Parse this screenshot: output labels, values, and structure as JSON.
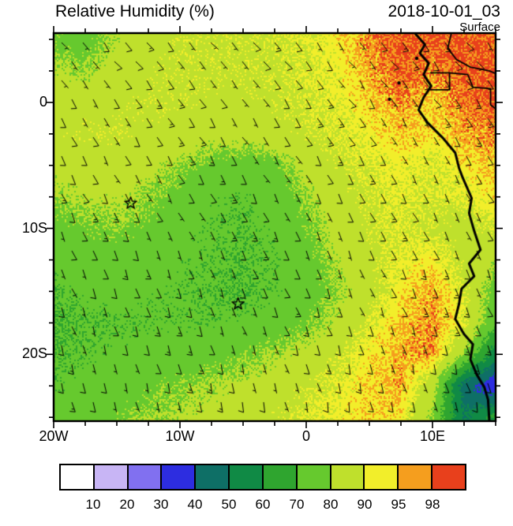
{
  "header": {
    "title": "Relative Humidity (%)",
    "datetime": "2018-10-01_03",
    "level": "Surface"
  },
  "axes": {
    "x_tick_labels": [
      {
        "label": "20W",
        "lon": -20
      },
      {
        "label": "10W",
        "lon": -10
      },
      {
        "label": "0",
        "lon": 0
      },
      {
        "label": "10E",
        "lon": 10
      }
    ],
    "y_tick_labels": [
      {
        "label": "0",
        "lat": 0
      },
      {
        "label": "10S",
        "lat": -10
      },
      {
        "label": "20S",
        "lat": -20
      }
    ],
    "minor_tick_interval_deg": 2.5,
    "major_tick_interval_deg": 10
  },
  "chart_data": {
    "type": "heatmap",
    "title": "Relative Humidity (%)",
    "valid_time": "2018-10-01_03",
    "level": "Surface",
    "units": "%",
    "lon_range": [
      -20,
      15
    ],
    "lat_range_top_bottom": [
      5.5,
      -25.3
    ],
    "colorbar": {
      "levels": [
        10,
        20,
        30,
        40,
        50,
        60,
        70,
        80,
        90,
        95,
        98
      ],
      "colors": [
        "#FFFFFF",
        "#C8B5F5",
        "#8170F0",
        "#2D2DE0",
        "#0E6F66",
        "#108A45",
        "#2FA52F",
        "#66C92E",
        "#BFE02C",
        "#F2EE2A",
        "#F59E1E",
        "#E8401C"
      ]
    },
    "grid": {
      "lons": [
        -20,
        -17.5,
        -15,
        -12.5,
        -10,
        -7.5,
        -5,
        -2.5,
        0,
        2.5,
        5,
        7.5,
        10,
        12.5,
        15
      ],
      "lats": [
        5,
        2.5,
        0,
        -2.5,
        -5,
        -7.5,
        -10,
        -12.5,
        -15,
        -17.5,
        -20,
        -22.5,
        -25
      ],
      "rh_percent": [
        [
          78,
          76,
          82,
          86,
          88,
          88,
          88,
          89,
          90,
          93,
          97,
          99,
          99,
          99,
          99
        ],
        [
          82,
          80,
          85,
          87,
          88,
          88,
          88,
          88,
          90,
          92,
          96,
          99,
          97,
          99,
          99
        ],
        [
          86,
          86,
          87,
          88,
          88,
          87,
          87,
          88,
          89,
          91,
          94,
          97,
          94,
          98,
          99
        ],
        [
          87,
          88,
          88,
          87,
          86,
          84,
          84,
          86,
          88,
          90,
          92,
          95,
          93,
          96,
          97
        ],
        [
          84,
          85,
          86,
          84,
          80,
          77,
          75,
          77,
          84,
          88,
          90,
          92,
          90,
          93,
          95
        ],
        [
          80,
          82,
          83,
          80,
          76,
          73,
          72,
          74,
          80,
          86,
          89,
          91,
          89,
          91,
          93
        ],
        [
          76,
          78,
          79,
          77,
          74,
          72,
          71,
          73,
          78,
          84,
          88,
          90,
          88,
          86,
          90
        ],
        [
          73,
          75,
          76,
          75,
          73,
          72,
          71,
          72,
          76,
          82,
          87,
          91,
          93,
          87,
          82
        ],
        [
          71,
          73,
          74,
          73,
          72,
          71,
          70,
          72,
          75,
          80,
          86,
          93,
          96,
          90,
          76
        ],
        [
          69,
          71,
          72,
          72,
          72,
          72,
          73,
          75,
          78,
          83,
          90,
          95,
          97,
          91,
          72
        ],
        [
          70,
          72,
          73,
          74,
          75,
          76,
          78,
          81,
          84,
          88,
          93,
          96,
          97,
          80,
          55
        ],
        [
          72,
          74,
          75,
          77,
          79,
          81,
          83,
          85,
          88,
          91,
          94,
          96,
          85,
          45,
          32
        ],
        [
          74,
          76,
          78,
          80,
          82,
          84,
          86,
          88,
          90,
          92,
          94,
          93,
          80,
          50,
          62
        ]
      ]
    },
    "wind_barbs": {
      "typical_speed_kt": 10,
      "typical_direction_from_deg": 145,
      "pattern": "southeasterly trade winds, 5-15 kt"
    },
    "markers": [
      {
        "type": "star",
        "lon": -13.9,
        "lat": -8.0
      },
      {
        "type": "star",
        "lon": -5.4,
        "lat": -16.0
      }
    ],
    "coastline": [
      [
        8.6,
        5.5
      ],
      [
        9.4,
        4.6
      ],
      [
        9.0,
        3.9
      ],
      [
        9.7,
        3.1
      ],
      [
        9.3,
        2.2
      ],
      [
        9.9,
        1.3
      ],
      [
        9.3,
        0.4
      ],
      [
        8.9,
        -0.6
      ],
      [
        9.6,
        -1.6
      ],
      [
        10.8,
        -2.8
      ],
      [
        11.8,
        -4.0
      ],
      [
        12.1,
        -5.2
      ],
      [
        12.4,
        -6.0
      ],
      [
        13.1,
        -7.6
      ],
      [
        12.9,
        -8.8
      ],
      [
        13.3,
        -10.2
      ],
      [
        13.8,
        -11.7
      ],
      [
        12.9,
        -12.8
      ],
      [
        13.3,
        -13.8
      ],
      [
        12.3,
        -14.8
      ],
      [
        12.1,
        -16.0
      ],
      [
        11.8,
        -17.2
      ],
      [
        12.5,
        -18.4
      ],
      [
        13.2,
        -19.2
      ],
      [
        13.0,
        -20.4
      ],
      [
        13.5,
        -21.6
      ],
      [
        14.1,
        -22.6
      ],
      [
        14.4,
        -23.6
      ],
      [
        14.5,
        -25.3
      ]
    ],
    "borders": [
      [
        [
          11.5,
          5.5
        ],
        [
          11.2,
          4.3
        ],
        [
          11.9,
          3.4
        ],
        [
          13.0,
          2.8
        ],
        [
          14.5,
          2.5
        ],
        [
          15,
          2.3
        ]
      ],
      [
        [
          9.8,
          2.35
        ],
        [
          11.35,
          2.35
        ],
        [
          11.35,
          1.0
        ],
        [
          9.8,
          1.0
        ]
      ],
      [
        [
          11.35,
          2.35
        ],
        [
          12.8,
          2.2
        ],
        [
          13.2,
          1.2
        ],
        [
          14.6,
          1.1
        ],
        [
          14.6,
          -0.2
        ],
        [
          15,
          -0.5
        ]
      ]
    ],
    "islands": [
      [
        8.75,
        3.5
      ],
      [
        7.35,
        1.55
      ],
      [
        6.6,
        0.25
      ]
    ]
  }
}
